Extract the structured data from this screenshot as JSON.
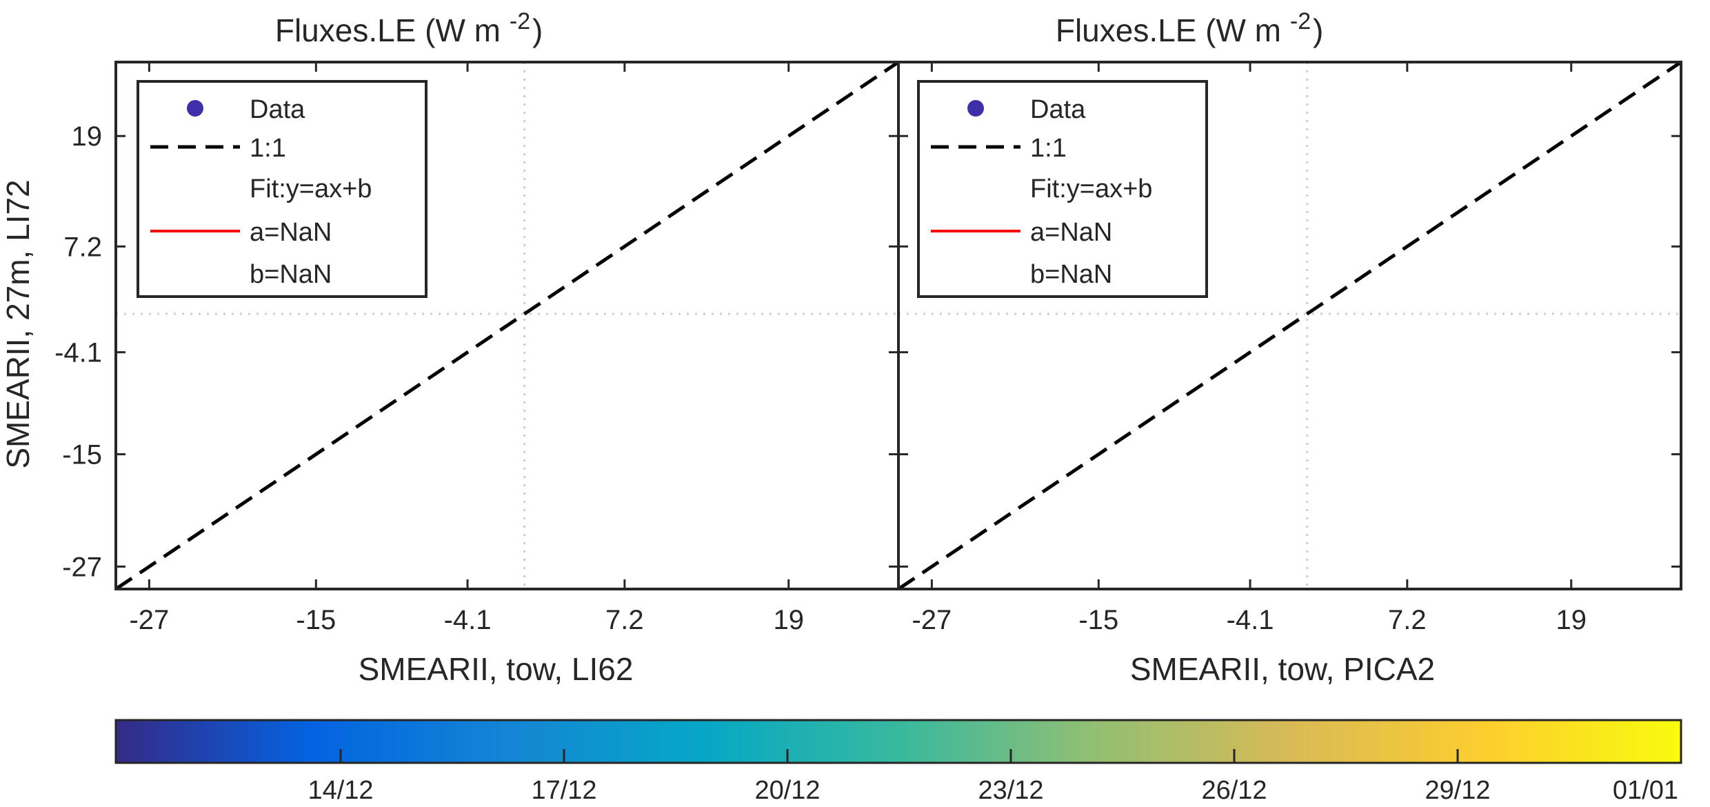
{
  "chart_data": [
    {
      "type": "scatter",
      "title": "Fluxes.LE (W m",
      "title_exp": "-2",
      "title_close": ")",
      "xlabel": "SMEARII, tow, LI62",
      "ylabel": "SMEARII, 27m, LI72",
      "xlim": [
        -29.4,
        26.9
      ],
      "ylim": [
        -29.4,
        26.9
      ],
      "xticks": [
        -27,
        -15,
        -4.1,
        7.2,
        19
      ],
      "yticks": [
        -27,
        -15,
        -4.1,
        7.2,
        19
      ],
      "xtick_labels": [
        "-27",
        "-15",
        "-4.1",
        "7.2",
        "19"
      ],
      "ytick_labels": [
        "-27",
        "-15",
        "-4.1",
        "7.2",
        "19"
      ],
      "zero_lines": {
        "x": 0,
        "y": 0,
        "style": "dotted",
        "color": "#cccccc"
      },
      "series": [
        {
          "name": "Data",
          "type": "scatter",
          "color": "#3f2fa8",
          "points": []
        },
        {
          "name": "1:1",
          "type": "line",
          "style": "dashed",
          "color": "#000000",
          "x": [
            -29.4,
            26.9
          ],
          "y": [
            -29.4,
            26.9
          ]
        },
        {
          "name": "Fit:y=ax+b",
          "type": "label"
        },
        {
          "name": "a=NaN",
          "type": "line",
          "color": "#ff0000"
        },
        {
          "name": "b=NaN",
          "type": "label"
        }
      ],
      "legend_position": "top-left",
      "grid": false
    },
    {
      "type": "scatter",
      "title": "Fluxes.LE (W m",
      "title_exp": "-2",
      "title_close": ")",
      "xlabel": "SMEARII, tow, PICA2",
      "ylabel": "",
      "xlim": [
        -29.4,
        26.9
      ],
      "ylim": [
        -29.4,
        26.9
      ],
      "xticks": [
        -27,
        -15,
        -4.1,
        7.2,
        19
      ],
      "yticks": [
        -27,
        -15,
        -4.1,
        7.2,
        19
      ],
      "xtick_labels": [
        "-27",
        "-15",
        "-4.1",
        "7.2",
        "19"
      ],
      "ytick_labels": [],
      "zero_lines": {
        "x": 0,
        "y": 0,
        "style": "dotted",
        "color": "#cccccc"
      },
      "series": [
        {
          "name": "Data",
          "type": "scatter",
          "color": "#3f2fa8",
          "points": []
        },
        {
          "name": "1:1",
          "type": "line",
          "style": "dashed",
          "color": "#000000",
          "x": [
            -29.4,
            26.9
          ],
          "y": [
            -29.4,
            26.9
          ]
        },
        {
          "name": "Fit:y=ax+b",
          "type": "label"
        },
        {
          "name": "a=NaN",
          "type": "line",
          "color": "#ff0000"
        },
        {
          "name": "b=NaN",
          "type": "label"
        }
      ],
      "legend_position": "top-left",
      "grid": false
    }
  ],
  "colorbar": {
    "colormap": "parula",
    "tick_labels": [
      "14/12",
      "17/12",
      "20/12",
      "23/12",
      "26/12",
      "29/12",
      "01/01"
    ],
    "range_labels_hidden_start": "",
    "colors": [
      "#352a87",
      "#0363e1",
      "#1485d4",
      "#06a7c6",
      "#38b99e",
      "#92bf73",
      "#d9ba56",
      "#fcce2e",
      "#f9fb0e"
    ]
  }
}
